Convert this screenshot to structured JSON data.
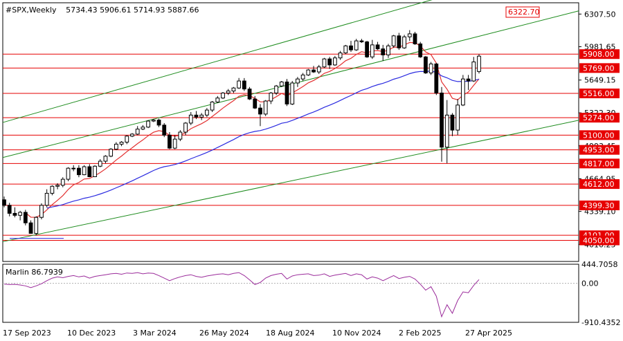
{
  "header": {
    "symbol": "#SPX,Weekly",
    "ohlc": "5734.43 5906.61 5714.93 5887.66"
  },
  "colors": {
    "background": "#ffffff",
    "candle": "#000000",
    "level_line": "#e60000",
    "channel": "#1e8c1e",
    "ma_red": "#e23030",
    "ma_blue": "#2a2ae0",
    "oscillator": "#9a2a9a",
    "label_bg": "#e60000",
    "label_text": "#ffffff"
  },
  "chart_data": [
    {
      "type": "candlestick",
      "title": "#SPX,Weekly",
      "y_axis": {
        "range": [
          3840,
          6420
        ],
        "tick_labels": [
          "6307.50",
          "5981.65",
          "5649.15",
          "5322.30",
          "4993.45",
          "4664.95",
          "4339.10",
          "4010.25"
        ]
      },
      "x_axis": {
        "tick_labels": [
          "17 Sep 2023",
          "10 Dec 2023",
          "3 Mar 2024",
          "26 May 2024",
          "18 Aug 2024",
          "10 Nov 2024",
          "2 Feb 2025",
          "27 Apr 2025"
        ]
      },
      "horizontal_levels": [
        5908.0,
        5769.0,
        5516.0,
        5274.0,
        5100.0,
        4953.0,
        4817.0,
        4612.0,
        4399.3,
        4101.0,
        4050.0
      ],
      "target_label": "6322.70",
      "candles": [
        [
          4455,
          4488,
          4380,
          4400
        ],
        [
          4400,
          4425,
          4290,
          4320
        ],
        [
          4320,
          4380,
          4280,
          4300
        ],
        [
          4300,
          4345,
          4250,
          4330
        ],
        [
          4330,
          4355,
          4200,
          4225
        ],
        [
          4225,
          4250,
          4120,
          4120
        ],
        [
          4120,
          4290,
          4100,
          4280
        ],
        [
          4280,
          4420,
          4260,
          4400
        ],
        [
          4400,
          4560,
          4380,
          4520
        ],
        [
          4520,
          4600,
          4500,
          4590
        ],
        [
          4590,
          4620,
          4560,
          4600
        ],
        [
          4600,
          4680,
          4580,
          4660
        ],
        [
          4660,
          4780,
          4640,
          4770
        ],
        [
          4770,
          4800,
          4740,
          4770
        ],
        [
          4770,
          4800,
          4680,
          4705
        ],
        [
          4705,
          4800,
          4700,
          4785
        ],
        [
          4785,
          4810,
          4680,
          4685
        ],
        [
          4685,
          4800,
          4690,
          4790
        ],
        [
          4790,
          4860,
          4780,
          4840
        ],
        [
          4840,
          4900,
          4820,
          4890
        ],
        [
          4890,
          4970,
          4880,
          4960
        ],
        [
          4960,
          5030,
          4950,
          5010
        ],
        [
          5010,
          5040,
          4990,
          5030
        ],
        [
          5030,
          5100,
          5010,
          5090
        ],
        [
          5090,
          5120,
          5080,
          5110
        ],
        [
          5110,
          5190,
          5100,
          5160
        ],
        [
          5160,
          5200,
          5150,
          5180
        ],
        [
          5180,
          5250,
          5170,
          5240
        ],
        [
          5240,
          5260,
          5230,
          5250
        ],
        [
          5250,
          5264,
          5180,
          5200
        ],
        [
          5200,
          5220,
          5080,
          5100
        ],
        [
          5100,
          5130,
          4960,
          4970
        ],
        [
          4970,
          5100,
          4960,
          5060
        ],
        [
          5060,
          5150,
          5040,
          5130
        ],
        [
          5130,
          5230,
          5100,
          5220
        ],
        [
          5220,
          5330,
          5200,
          5300
        ],
        [
          5300,
          5340,
          5260,
          5280
        ],
        [
          5280,
          5320,
          5250,
          5300
        ],
        [
          5300,
          5370,
          5280,
          5350
        ],
        [
          5350,
          5440,
          5330,
          5430
        ],
        [
          5430,
          5490,
          5420,
          5470
        ],
        [
          5470,
          5530,
          5460,
          5520
        ],
        [
          5520,
          5560,
          5500,
          5540
        ],
        [
          5540,
          5580,
          5520,
          5570
        ],
        [
          5570,
          5670,
          5560,
          5640
        ],
        [
          5640,
          5669,
          5540,
          5560
        ],
        [
          5560,
          5580,
          5450,
          5460
        ],
        [
          5460,
          5490,
          5360,
          5370
        ],
        [
          5370,
          5410,
          5190,
          5310
        ],
        [
          5310,
          5450,
          5290,
          5440
        ],
        [
          5440,
          5530,
          5410,
          5520
        ],
        [
          5520,
          5600,
          5500,
          5590
        ],
        [
          5590,
          5640,
          5580,
          5630
        ],
        [
          5630,
          5660,
          5390,
          5410
        ],
        [
          5410,
          5640,
          5400,
          5620
        ],
        [
          5620,
          5680,
          5580,
          5660
        ],
        [
          5660,
          5720,
          5640,
          5700
        ],
        [
          5700,
          5760,
          5690,
          5750
        ],
        [
          5750,
          5790,
          5720,
          5730
        ],
        [
          5730,
          5800,
          5710,
          5780
        ],
        [
          5780,
          5870,
          5770,
          5860
        ],
        [
          5860,
          5880,
          5760,
          5800
        ],
        [
          5800,
          5890,
          5790,
          5870
        ],
        [
          5870,
          5940,
          5850,
          5920
        ],
        [
          5920,
          6000,
          5910,
          5990
        ],
        [
          5990,
          6040,
          5930,
          5950
        ],
        [
          5950,
          6060,
          5940,
          6040
        ],
        [
          6040,
          6060,
          6020,
          6030
        ],
        [
          6030,
          6040,
          5870,
          5880
        ],
        [
          5880,
          6050,
          5860,
          6000
        ],
        [
          6000,
          6030,
          5950,
          5960
        ],
        [
          5960,
          6000,
          5840,
          5900
        ],
        [
          5900,
          6010,
          5870,
          5990
        ],
        [
          5990,
          6100,
          5970,
          6090
        ],
        [
          6090,
          6120,
          5950,
          5970
        ],
        [
          5970,
          6100,
          5960,
          6080
        ],
        [
          6080,
          6147,
          6040,
          6110
        ],
        [
          6110,
          6130,
          6000,
          6010
        ],
        [
          6010,
          6030,
          5870,
          5880
        ],
        [
          5880,
          5890,
          5710,
          5720
        ],
        [
          5720,
          5830,
          5700,
          5810
        ],
        [
          5810,
          5820,
          5500,
          5520
        ],
        [
          5520,
          5580,
          4835,
          4980
        ],
        [
          4980,
          5450,
          4820,
          5300
        ],
        [
          5300,
          5320,
          5090,
          5150
        ],
        [
          5150,
          5460,
          5100,
          5400
        ],
        [
          5400,
          5700,
          5390,
          5660
        ],
        [
          5660,
          5700,
          5550,
          5640
        ],
        [
          5640,
          5880,
          5630,
          5830
        ],
        [
          5734.43,
          5906.61,
          5714.93,
          5887.66
        ]
      ]
    },
    {
      "type": "line",
      "title": "Marlin 86.7939",
      "y_axis": {
        "range": [
          -910.4352,
          444.7058
        ],
        "tick_labels": [
          "444.7058",
          "0.00",
          "-910.4352"
        ]
      },
      "series": [
        {
          "values": [
            -20,
            -30,
            -25,
            -40,
            -60,
            -100,
            -60,
            -10,
            60,
            120,
            150,
            130,
            160,
            180,
            150,
            170,
            120,
            160,
            180,
            200,
            220,
            230,
            210,
            240,
            230,
            250,
            220,
            240,
            230,
            180,
            120,
            60,
            110,
            150,
            180,
            200,
            160,
            140,
            170,
            190,
            210,
            220,
            200,
            230,
            250,
            180,
            80,
            -30,
            20,
            120,
            180,
            210,
            230,
            100,
            170,
            200,
            210,
            220,
            180,
            190,
            220,
            160,
            190,
            210,
            230,
            180,
            220,
            200,
            100,
            150,
            120,
            60,
            120,
            180,
            110,
            140,
            160,
            100,
            -20,
            -160,
            -80,
            -300,
            -780,
            -500,
            -700,
            -400,
            -200,
            -220,
            -50,
            87
          ]
        }
      ]
    }
  ]
}
